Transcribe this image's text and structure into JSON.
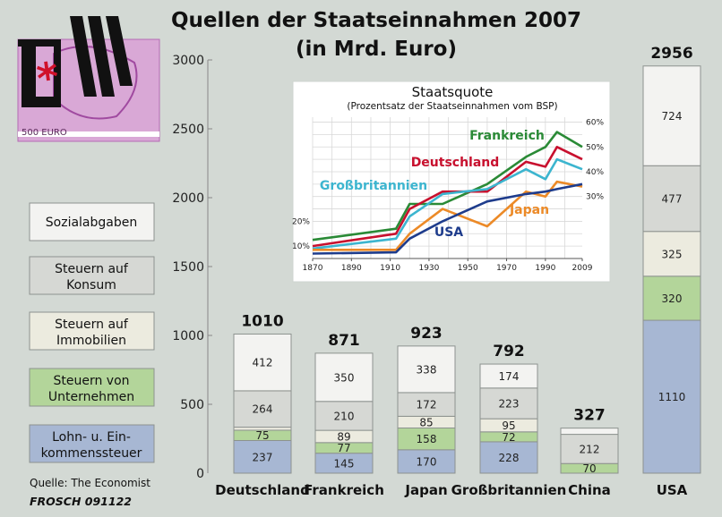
{
  "title": "Quellen der Staatseinnahmen 2007",
  "subtitle": "(in Mrd. Euro)",
  "source": "Quelle: The Economist",
  "author": "FROSCH 091122",
  "colors": {
    "background": "#d3d9d4",
    "sozialabgaben": "#f3f3f1",
    "konsum": "#d6d8d4",
    "immobilien": "#ecebdf",
    "unternehmen": "#b3d59a",
    "einkommen": "#a7b7d3",
    "frankreich": "#2a8a36",
    "deutschland": "#c8102e",
    "grossbritannien": "#3cb5cf",
    "japan": "#ec8a27",
    "usa": "#1e3c8c"
  },
  "chart_data": [
    {
      "type": "bar",
      "stacked": true,
      "title": "Quellen der Staatseinnahmen 2007",
      "subtitle": "(in Mrd. Euro)",
      "ylim": [
        0,
        3000
      ],
      "yticks": [
        "0",
        "500",
        "1000",
        "1500",
        "2000",
        "2500",
        "3000"
      ],
      "categories": [
        "Deutschland",
        "Frankreich",
        "Japan",
        "Großbritannien",
        "China",
        "USA"
      ],
      "totals": [
        "1010",
        "871",
        "923",
        "792",
        "327",
        "2956"
      ],
      "series": [
        {
          "key": "einkommen",
          "name": "Lohn- u. Einkommenssteuer",
          "legend": [
            "Lohn- u. Ein-",
            "kommenssteuer"
          ],
          "values": [
            237,
            145,
            170,
            228,
            0,
            1110
          ],
          "labels": [
            "237",
            "145",
            "170",
            "228",
            "",
            "1110"
          ]
        },
        {
          "key": "unternehmen",
          "name": "Steuern von Unternehmen",
          "legend": [
            "Steuern von",
            "Unternehmen"
          ],
          "values": [
            75,
            77,
            158,
            72,
            70,
            320
          ],
          "labels": [
            "75",
            "77",
            "158",
            "72",
            "70",
            "320"
          ]
        },
        {
          "key": "immobilien",
          "name": "Steuern auf Immobilien",
          "legend": [
            "Steuern auf",
            "Immobilien"
          ],
          "values": [
            22,
            89,
            85,
            95,
            0,
            325
          ],
          "labels": [
            "",
            "89",
            "85",
            "95",
            "",
            "325"
          ]
        },
        {
          "key": "konsum",
          "name": "Steuern auf Konsum",
          "legend": [
            "Steuern auf",
            "Konsum"
          ],
          "values": [
            264,
            210,
            172,
            223,
            212,
            477
          ],
          "labels": [
            "264",
            "210",
            "172",
            "223",
            "212",
            "477"
          ]
        },
        {
          "key": "sozialabgaben",
          "name": "Sozialabgaben",
          "legend": [
            "Sozialabgaben"
          ],
          "values": [
            412,
            350,
            338,
            174,
            45,
            724
          ],
          "labels": [
            "412",
            "350",
            "338",
            "174",
            "",
            "724"
          ]
        }
      ]
    },
    {
      "type": "line",
      "title": "Staatsquote",
      "subtitle": "(Prozentsatz der Staatseinnahmen vom BSP)",
      "xlim": [
        1870,
        2009
      ],
      "ylim": [
        5,
        62
      ],
      "xticks": [
        "1870",
        "1890",
        "1910",
        "1930",
        "1950",
        "1970",
        "1990",
        "2009"
      ],
      "yticks_left": [
        "10%",
        "20%"
      ],
      "yticks_right": [
        "30%",
        "40%",
        "50%",
        "60%"
      ],
      "series": [
        {
          "key": "frankreich",
          "name": "Frankreich",
          "x": [
            1870,
            1913,
            1920,
            1937,
            1960,
            1980,
            1990,
            1996,
            2009
          ],
          "y": [
            12.5,
            17,
            27,
            27,
            35,
            46,
            50,
            56,
            50
          ]
        },
        {
          "key": "deutschland",
          "name": "Deutschland",
          "x": [
            1870,
            1913,
            1920,
            1937,
            1960,
            1980,
            1990,
            1996,
            2009
          ],
          "y": [
            10,
            15,
            25,
            32,
            32,
            44,
            42,
            50,
            45
          ]
        },
        {
          "key": "grossbritannien",
          "name": "Großbritannien",
          "x": [
            1870,
            1913,
            1920,
            1937,
            1960,
            1980,
            1990,
            1996,
            2009
          ],
          "y": [
            9,
            13,
            22,
            31,
            33,
            41,
            37,
            45,
            41
          ]
        },
        {
          "key": "japan",
          "name": "Japan",
          "x": [
            1870,
            1913,
            1920,
            1937,
            1960,
            1980,
            1990,
            1996,
            2009
          ],
          "y": [
            8.5,
            8.5,
            15,
            25,
            18,
            32,
            30,
            36,
            34
          ]
        },
        {
          "key": "usa",
          "name": "USA",
          "x": [
            1870,
            1913,
            1920,
            1937,
            1960,
            1980,
            1990,
            1996,
            2009
          ],
          "y": [
            7,
            7.5,
            13,
            20,
            28,
            31,
            32,
            33,
            35
          ]
        }
      ]
    }
  ]
}
